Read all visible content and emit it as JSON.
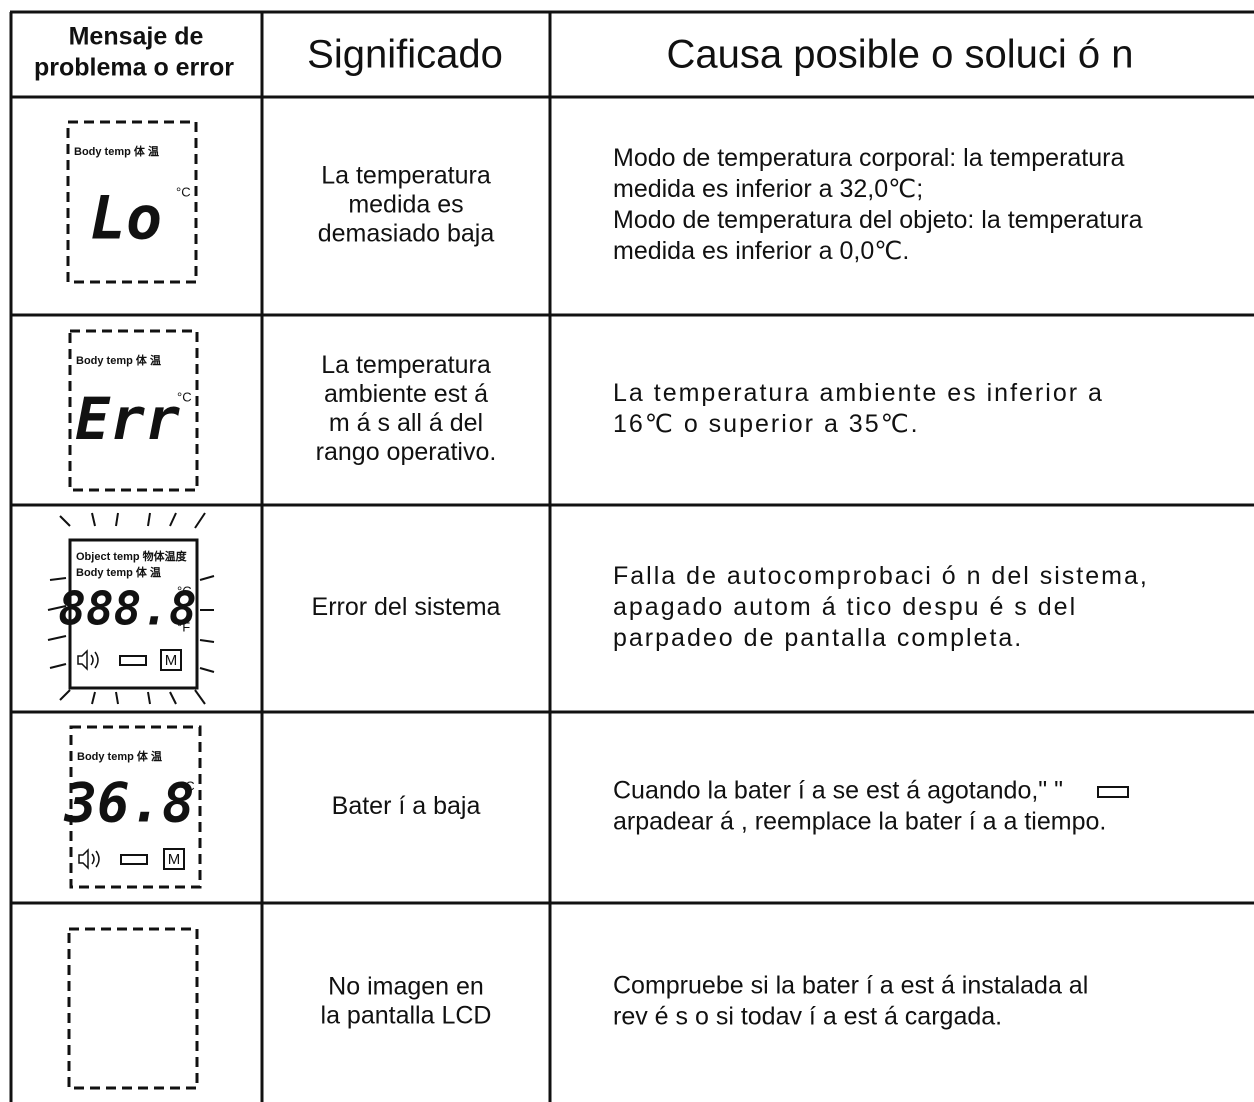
{
  "header": {
    "col1": [
      "Mensaje de",
      "problema o error"
    ],
    "col2": "Significado",
    "col3": "Causa posible o soluci ó n"
  },
  "rows": [
    {
      "display": {
        "labels": [
          "Body temp 体  温"
        ],
        "units": [
          "°C"
        ],
        "reading": "Lo"
      },
      "meaning": [
        "La temperatura",
        "medida es",
        "demasiado baja"
      ],
      "cause": [
        "Modo de temperatura corporal: la temperatura",
        "medida es inferior a 32,0℃;",
        "Modo de temperatura del objeto: la temperatura",
        "medida es inferior a 0,0℃."
      ]
    },
    {
      "display": {
        "labels": [
          "Body temp 体  温"
        ],
        "units": [
          "°C"
        ],
        "reading": "Err"
      },
      "meaning": [
        "La temperatura",
        "ambiente est á",
        "m á s all á  del",
        "rango operativo."
      ],
      "cause": [
        "La temperatura ambiente es inferior a",
        "16℃ o superior a 35℃."
      ]
    },
    {
      "display": {
        "labels": [
          "Object temp 物体温度",
          "Body temp 体  温"
        ],
        "units": [
          "°C",
          "°F"
        ],
        "reading": "888.8",
        "mode": "M"
      },
      "meaning": [
        "Error del sistema"
      ],
      "cause": [
        "Falla de autocomprobaci ó n del sistema,",
        "apagado autom á tico despu é s del",
        "parpadeo de pantalla completa."
      ]
    },
    {
      "display": {
        "labels": [
          "Body temp 体  温"
        ],
        "units": [
          "°C"
        ],
        "reading": "36.8",
        "mode": "M"
      },
      "meaning": [
        "Bater í a baja"
      ],
      "cause": [
        "Cuando la bater í a se est á agotando,\"       \"",
        "arpadear á , reemplace la bater í a a tiempo."
      ]
    },
    {
      "meaning": [
        "No imagen en",
        "la pantalla LCD"
      ],
      "cause": [
        "Compruebe si la bater í a est á instalada al",
        "rev é s o si todav í a est á cargada."
      ]
    }
  ]
}
